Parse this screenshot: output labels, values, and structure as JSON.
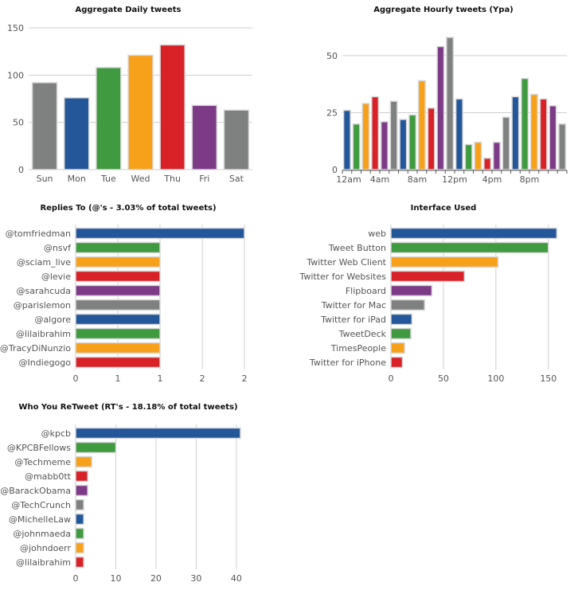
{
  "palette": {
    "gray": "#7f8080",
    "blue": "#23579a",
    "green": "#3f9a40",
    "orange": "#f7a11a",
    "red": "#d92128",
    "purple": "#7d3a87"
  },
  "chart_data": [
    {
      "id": "daily",
      "type": "bar",
      "orientation": "vertical",
      "title": "Aggregate Daily tweets",
      "categories": [
        "Sun",
        "Mon",
        "Tue",
        "Wed",
        "Thu",
        "Fri",
        "Sat"
      ],
      "values": [
        92,
        76,
        108,
        121,
        132,
        68,
        63
      ],
      "colors": [
        "#7f8080",
        "#23579a",
        "#3f9a40",
        "#f7a11a",
        "#d92128",
        "#7d3a87",
        "#7f8080"
      ],
      "ylim": [
        0,
        150
      ],
      "yticks": [
        0,
        50,
        100,
        150
      ],
      "grid": true
    },
    {
      "id": "hourly",
      "type": "bar",
      "orientation": "vertical",
      "title": "Aggregate Hourly tweets (Ypa)",
      "categories": [
        "0",
        "1",
        "2",
        "3",
        "4",
        "5",
        "6",
        "7",
        "8",
        "9",
        "10",
        "11",
        "12",
        "13",
        "14",
        "15",
        "16",
        "17",
        "18",
        "19",
        "20",
        "21",
        "22",
        "23"
      ],
      "values": [
        26,
        20,
        29,
        32,
        21,
        30,
        22,
        24,
        39,
        27,
        54,
        58,
        31,
        11,
        12,
        5,
        12,
        23,
        32,
        40,
        33,
        31,
        28,
        20
      ],
      "colors": [
        "#23579a",
        "#3f9a40",
        "#f7a11a",
        "#d92128",
        "#7d3a87",
        "#7f8080",
        "#23579a",
        "#3f9a40",
        "#f7a11a",
        "#d92128",
        "#7d3a87",
        "#7f8080",
        "#23579a",
        "#3f9a40",
        "#f7a11a",
        "#d92128",
        "#7d3a87",
        "#7f8080",
        "#23579a",
        "#3f9a40",
        "#f7a11a",
        "#d92128",
        "#7d3a87",
        "#7f8080"
      ],
      "ylim": [
        0,
        58
      ],
      "yticks": [
        0,
        25,
        50
      ],
      "xtick_labels": [
        {
          "at": 0,
          "label": "12am"
        },
        {
          "at": 4,
          "label": "4am"
        },
        {
          "at": 8,
          "label": "8am"
        },
        {
          "at": 12,
          "label": "12pm"
        },
        {
          "at": 16,
          "label": "4pm"
        },
        {
          "at": 20,
          "label": "8pm"
        }
      ],
      "grid": true
    },
    {
      "id": "replies",
      "type": "bar",
      "orientation": "horizontal",
      "title": "Replies To (@'s - 3.03% of total tweets)",
      "categories": [
        "@tomfriedman",
        "@nsvf",
        "@sciam_live",
        "@levie",
        "@sarahcuda",
        "@parislemon",
        "@algore",
        "@lilaibrahim",
        "@TracyDiNunzio",
        "@Indiegogo"
      ],
      "values": [
        2,
        1,
        1,
        1,
        1,
        1,
        1,
        1,
        1,
        1
      ],
      "colors": [
        "#23579a",
        "#3f9a40",
        "#f7a11a",
        "#d92128",
        "#7d3a87",
        "#7f8080",
        "#23579a",
        "#3f9a40",
        "#f7a11a",
        "#d92128"
      ],
      "xlim": [
        0,
        2
      ],
      "xticks": [
        {
          "v": 0,
          "label": "0"
        },
        {
          "v": 0.5,
          "label": "1"
        },
        {
          "v": 1,
          "label": "1"
        },
        {
          "v": 1.5,
          "label": "2"
        },
        {
          "v": 2,
          "label": "2"
        }
      ],
      "grid": true
    },
    {
      "id": "interface",
      "type": "bar",
      "orientation": "horizontal",
      "title": "Interface Used",
      "categories": [
        "web",
        "Tweet Button",
        "Twitter Web Client",
        "Twitter for Websites",
        "Flipboard",
        "Twitter for Mac",
        "Twitter for iPad",
        "TweetDeck",
        "TimesPeople",
        "Twitter for iPhone"
      ],
      "values": [
        158,
        150,
        102,
        70,
        39,
        32,
        20,
        19,
        13,
        11
      ],
      "colors": [
        "#23579a",
        "#3f9a40",
        "#f7a11a",
        "#d92128",
        "#7d3a87",
        "#7f8080",
        "#23579a",
        "#3f9a40",
        "#f7a11a",
        "#d92128"
      ],
      "xlim": [
        0,
        160
      ],
      "xticks": [
        {
          "v": 0,
          "label": "0"
        },
        {
          "v": 50,
          "label": "50"
        },
        {
          "v": 100,
          "label": "100"
        },
        {
          "v": 150,
          "label": "150"
        }
      ],
      "grid": true
    },
    {
      "id": "retweets",
      "type": "bar",
      "orientation": "horizontal",
      "title": "Who You ReTweet (RT's - 18.18% of total tweets)",
      "categories": [
        "@kpcb",
        "@KPCBFellows",
        "@Techmeme",
        "@mabb0tt",
        "@BarackObama",
        "@TechCrunch",
        "@MichelleLaw",
        "@johnmaeda",
        "@johndoerr",
        "@lilaibrahim"
      ],
      "values": [
        41,
        10,
        4,
        3,
        3,
        2,
        2,
        2,
        2,
        2
      ],
      "colors": [
        "#23579a",
        "#3f9a40",
        "#f7a11a",
        "#d92128",
        "#7d3a87",
        "#7f8080",
        "#23579a",
        "#3f9a40",
        "#f7a11a",
        "#d92128"
      ],
      "xlim": [
        0,
        42
      ],
      "xticks": [
        {
          "v": 0,
          "label": "0"
        },
        {
          "v": 10,
          "label": "10"
        },
        {
          "v": 20,
          "label": "20"
        },
        {
          "v": 30,
          "label": "30"
        },
        {
          "v": 40,
          "label": "40"
        }
      ],
      "grid": true
    }
  ]
}
